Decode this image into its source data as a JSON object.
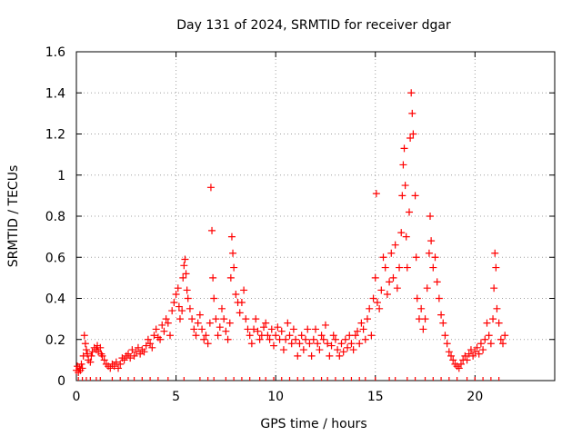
{
  "chart_data": {
    "type": "scatter",
    "title": "Day 131 of 2024, SRMTID for receiver dgar",
    "xlabel": "GPS time / hours",
    "ylabel": "SRMTID / TECUs",
    "xlim": [
      0,
      24
    ],
    "ylim": [
      0,
      1.6
    ],
    "x_ticks": [
      0,
      5,
      10,
      15,
      20
    ],
    "x_tick_labels": [
      "0",
      "5",
      "10",
      "15",
      "20"
    ],
    "y_ticks": [
      0,
      0.2,
      0.4,
      0.6,
      0.8,
      1.0,
      1.2,
      1.4,
      1.6
    ],
    "y_tick_labels": [
      "0",
      "0.2",
      "0.4",
      "0.6",
      "0.8",
      "1",
      "1.2",
      "1.4",
      "1.6"
    ],
    "grid": true,
    "marker": "plus",
    "colors": {
      "series": "#ff0000",
      "grid": "#a0a0a0",
      "frame": "#000000"
    },
    "series": [
      {
        "name": "SRMTID",
        "points": [
          [
            0.0,
            0.05
          ],
          [
            0.05,
            0.07
          ],
          [
            0.1,
            0.04
          ],
          [
            0.15,
            0.06
          ],
          [
            0.2,
            0.05
          ],
          [
            0.25,
            0.08
          ],
          [
            0.3,
            0.06
          ],
          [
            0.35,
            0.12
          ],
          [
            0.4,
            0.22
          ],
          [
            0.45,
            0.18
          ],
          [
            0.5,
            0.15
          ],
          [
            0.55,
            0.13
          ],
          [
            0.6,
            0.1
          ],
          [
            0.7,
            0.09
          ],
          [
            0.75,
            0.12
          ],
          [
            0.8,
            0.14
          ],
          [
            0.9,
            0.16
          ],
          [
            1.0,
            0.15
          ],
          [
            1.05,
            0.17
          ],
          [
            1.1,
            0.14
          ],
          [
            1.2,
            0.16
          ],
          [
            1.25,
            0.13
          ],
          [
            1.3,
            0.12
          ],
          [
            1.4,
            0.1
          ],
          [
            1.5,
            0.08
          ],
          [
            1.6,
            0.07
          ],
          [
            1.7,
            0.06
          ],
          [
            1.8,
            0.08
          ],
          [
            1.9,
            0.07
          ],
          [
            2.0,
            0.09
          ],
          [
            2.1,
            0.06
          ],
          [
            2.2,
            0.08
          ],
          [
            2.3,
            0.11
          ],
          [
            2.4,
            0.1
          ],
          [
            2.5,
            0.12
          ],
          [
            2.6,
            0.13
          ],
          [
            2.7,
            0.11
          ],
          [
            2.8,
            0.15
          ],
          [
            2.9,
            0.12
          ],
          [
            3.0,
            0.14
          ],
          [
            3.1,
            0.16
          ],
          [
            3.2,
            0.13
          ],
          [
            3.3,
            0.15
          ],
          [
            3.4,
            0.14
          ],
          [
            3.5,
            0.17
          ],
          [
            3.6,
            0.2
          ],
          [
            3.7,
            0.18
          ],
          [
            3.8,
            0.16
          ],
          [
            3.9,
            0.22
          ],
          [
            4.0,
            0.25
          ],
          [
            4.1,
            0.21
          ],
          [
            4.2,
            0.2
          ],
          [
            4.3,
            0.27
          ],
          [
            4.4,
            0.24
          ],
          [
            4.5,
            0.3
          ],
          [
            4.6,
            0.28
          ],
          [
            4.7,
            0.22
          ],
          [
            4.8,
            0.34
          ],
          [
            4.9,
            0.38
          ],
          [
            5.0,
            0.42
          ],
          [
            5.1,
            0.45
          ],
          [
            5.15,
            0.36
          ],
          [
            5.2,
            0.3
          ],
          [
            5.3,
            0.34
          ],
          [
            5.35,
            0.5
          ],
          [
            5.4,
            0.56
          ],
          [
            5.45,
            0.59
          ],
          [
            5.5,
            0.52
          ],
          [
            5.55,
            0.44
          ],
          [
            5.6,
            0.4
          ],
          [
            5.7,
            0.35
          ],
          [
            5.8,
            0.3
          ],
          [
            5.9,
            0.25
          ],
          [
            6.0,
            0.22
          ],
          [
            6.1,
            0.28
          ],
          [
            6.2,
            0.32
          ],
          [
            6.3,
            0.25
          ],
          [
            6.4,
            0.2
          ],
          [
            6.5,
            0.22
          ],
          [
            6.6,
            0.18
          ],
          [
            6.7,
            0.28
          ],
          [
            6.75,
            0.94
          ],
          [
            6.8,
            0.73
          ],
          [
            6.85,
            0.5
          ],
          [
            6.9,
            0.4
          ],
          [
            7.0,
            0.3
          ],
          [
            7.1,
            0.22
          ],
          [
            7.2,
            0.26
          ],
          [
            7.3,
            0.35
          ],
          [
            7.4,
            0.3
          ],
          [
            7.5,
            0.24
          ],
          [
            7.6,
            0.2
          ],
          [
            7.7,
            0.28
          ],
          [
            7.75,
            0.5
          ],
          [
            7.8,
            0.7
          ],
          [
            7.85,
            0.62
          ],
          [
            7.9,
            0.55
          ],
          [
            8.0,
            0.42
          ],
          [
            8.1,
            0.38
          ],
          [
            8.2,
            0.33
          ],
          [
            8.3,
            0.38
          ],
          [
            8.4,
            0.44
          ],
          [
            8.5,
            0.3
          ],
          [
            8.6,
            0.25
          ],
          [
            8.7,
            0.22
          ],
          [
            8.8,
            0.18
          ],
          [
            8.9,
            0.25
          ],
          [
            9.0,
            0.3
          ],
          [
            9.1,
            0.24
          ],
          [
            9.2,
            0.2
          ],
          [
            9.3,
            0.22
          ],
          [
            9.4,
            0.26
          ],
          [
            9.5,
            0.28
          ],
          [
            9.6,
            0.22
          ],
          [
            9.7,
            0.2
          ],
          [
            9.8,
            0.25
          ],
          [
            9.9,
            0.17
          ],
          [
            10.0,
            0.22
          ],
          [
            10.1,
            0.26
          ],
          [
            10.2,
            0.2
          ],
          [
            10.3,
            0.24
          ],
          [
            10.4,
            0.15
          ],
          [
            10.5,
            0.2
          ],
          [
            10.6,
            0.28
          ],
          [
            10.7,
            0.22
          ],
          [
            10.8,
            0.18
          ],
          [
            10.9,
            0.25
          ],
          [
            11.0,
            0.2
          ],
          [
            11.1,
            0.12
          ],
          [
            11.2,
            0.18
          ],
          [
            11.3,
            0.22
          ],
          [
            11.4,
            0.15
          ],
          [
            11.5,
            0.2
          ],
          [
            11.6,
            0.25
          ],
          [
            11.7,
            0.18
          ],
          [
            11.8,
            0.12
          ],
          [
            11.9,
            0.2
          ],
          [
            12.0,
            0.25
          ],
          [
            12.1,
            0.18
          ],
          [
            12.2,
            0.15
          ],
          [
            12.3,
            0.22
          ],
          [
            12.4,
            0.2
          ],
          [
            12.5,
            0.27
          ],
          [
            12.6,
            0.18
          ],
          [
            12.7,
            0.12
          ],
          [
            12.8,
            0.17
          ],
          [
            12.9,
            0.22
          ],
          [
            13.0,
            0.2
          ],
          [
            13.1,
            0.15
          ],
          [
            13.2,
            0.12
          ],
          [
            13.3,
            0.18
          ],
          [
            13.4,
            0.14
          ],
          [
            13.5,
            0.2
          ],
          [
            13.6,
            0.16
          ],
          [
            13.7,
            0.22
          ],
          [
            13.8,
            0.18
          ],
          [
            13.9,
            0.15
          ],
          [
            14.0,
            0.22
          ],
          [
            14.1,
            0.24
          ],
          [
            14.2,
            0.18
          ],
          [
            14.3,
            0.28
          ],
          [
            14.4,
            0.25
          ],
          [
            14.5,
            0.2
          ],
          [
            14.6,
            0.3
          ],
          [
            14.7,
            0.35
          ],
          [
            14.8,
            0.22
          ],
          [
            14.9,
            0.4
          ],
          [
            15.0,
            0.5
          ],
          [
            15.05,
            0.91
          ],
          [
            15.1,
            0.38
          ],
          [
            15.2,
            0.35
          ],
          [
            15.3,
            0.44
          ],
          [
            15.4,
            0.6
          ],
          [
            15.5,
            0.55
          ],
          [
            15.6,
            0.42
          ],
          [
            15.7,
            0.48
          ],
          [
            15.8,
            0.62
          ],
          [
            15.9,
            0.5
          ],
          [
            16.0,
            0.66
          ],
          [
            16.1,
            0.45
          ],
          [
            16.2,
            0.55
          ],
          [
            16.3,
            0.72
          ],
          [
            16.35,
            0.9
          ],
          [
            16.4,
            1.05
          ],
          [
            16.45,
            1.13
          ],
          [
            16.5,
            0.95
          ],
          [
            16.55,
            0.7
          ],
          [
            16.6,
            0.55
          ],
          [
            16.7,
            0.82
          ],
          [
            16.75,
            1.18
          ],
          [
            16.8,
            1.4
          ],
          [
            16.85,
            1.3
          ],
          [
            16.9,
            1.2
          ],
          [
            17.0,
            0.9
          ],
          [
            17.05,
            0.6
          ],
          [
            17.1,
            0.4
          ],
          [
            17.2,
            0.3
          ],
          [
            17.3,
            0.35
          ],
          [
            17.4,
            0.25
          ],
          [
            17.5,
            0.3
          ],
          [
            17.6,
            0.45
          ],
          [
            17.7,
            0.62
          ],
          [
            17.75,
            0.8
          ],
          [
            17.8,
            0.68
          ],
          [
            17.9,
            0.55
          ],
          [
            18.0,
            0.6
          ],
          [
            18.1,
            0.48
          ],
          [
            18.2,
            0.4
          ],
          [
            18.3,
            0.32
          ],
          [
            18.4,
            0.28
          ],
          [
            18.5,
            0.22
          ],
          [
            18.6,
            0.18
          ],
          [
            18.7,
            0.14
          ],
          [
            18.8,
            0.12
          ],
          [
            18.9,
            0.1
          ],
          [
            19.0,
            0.08
          ],
          [
            19.1,
            0.07
          ],
          [
            19.2,
            0.06
          ],
          [
            19.3,
            0.08
          ],
          [
            19.4,
            0.1
          ],
          [
            19.5,
            0.12
          ],
          [
            19.6,
            0.1
          ],
          [
            19.7,
            0.13
          ],
          [
            19.8,
            0.15
          ],
          [
            19.9,
            0.12
          ],
          [
            20.0,
            0.14
          ],
          [
            20.1,
            0.16
          ],
          [
            20.2,
            0.13
          ],
          [
            20.3,
            0.18
          ],
          [
            20.4,
            0.15
          ],
          [
            20.5,
            0.2
          ],
          [
            20.6,
            0.28
          ],
          [
            20.7,
            0.22
          ],
          [
            20.8,
            0.18
          ],
          [
            20.9,
            0.3
          ],
          [
            20.95,
            0.45
          ],
          [
            21.0,
            0.62
          ],
          [
            21.05,
            0.55
          ],
          [
            21.1,
            0.35
          ],
          [
            21.2,
            0.28
          ],
          [
            21.3,
            0.2
          ],
          [
            21.4,
            0.18
          ],
          [
            21.5,
            0.22
          ]
        ]
      }
    ],
    "zero_markers_x": [
      0.1,
      0.3,
      0.5,
      0.7,
      1.0,
      1.2,
      1.8,
      2.2,
      2.6,
      2.9,
      3.3,
      3.7,
      4.1,
      4.6,
      5.4,
      6.2,
      6.6,
      6.9,
      7.5,
      7.9,
      8.3,
      8.7,
      9.2,
      9.5,
      9.9,
      10.3,
      10.7,
      11.1,
      11.4,
      11.9,
      12.3,
      12.6,
      13.0,
      13.4,
      13.8,
      14.2,
      14.5,
      15.0,
      15.7,
      16.0,
      16.6,
      17.0,
      17.5,
      17.9,
      18.3,
      18.7,
      19.1,
      19.6,
      20.0,
      20.4,
      20.8,
      21.2
    ]
  }
}
